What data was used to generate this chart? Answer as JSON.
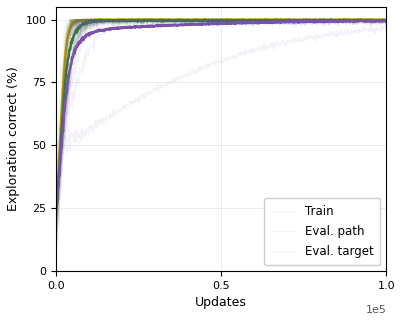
{
  "title": "",
  "xlabel": "Updates",
  "ylabel": "Exploration correct (%)",
  "xlim": [
    0,
    100000
  ],
  "ylim": [
    0,
    105
  ],
  "yticks": [
    0,
    25,
    50,
    75,
    100
  ],
  "xticks": [
    0,
    50000,
    100000
  ],
  "xtick_labels": [
    "0.0",
    "0.5",
    "1.0"
  ],
  "legend_labels": [
    "Train",
    "Eval. path",
    "Eval. target"
  ],
  "colors": [
    "#C8960C",
    "#2E7D32",
    "#7B52AB"
  ],
  "shade_alpha": 0.08,
  "line_width": 1.8,
  "figsize": [
    4.02,
    3.2
  ],
  "dpi": 100,
  "n_runs": 12
}
